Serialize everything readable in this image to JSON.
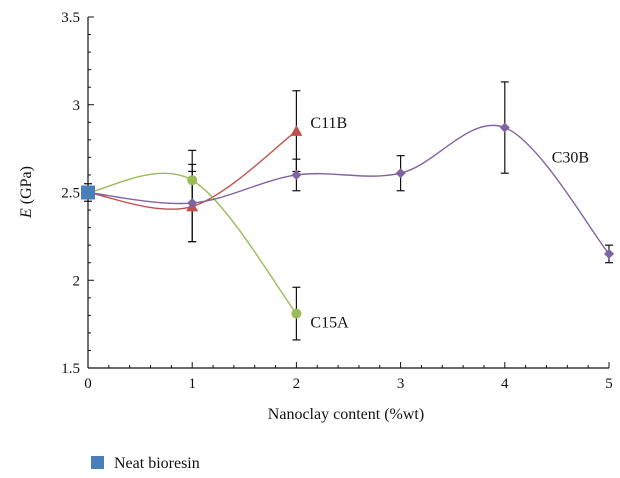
{
  "chart_data": {
    "type": "line",
    "xlabel": "Nanoclay content (%wt)",
    "ylabel": "E (GPa)",
    "ylabel_italic_part": "E",
    "ylabel_rest": " (GPa)",
    "xlim": [
      0,
      5
    ],
    "ylim": [
      1.5,
      3.5
    ],
    "x_ticks": [
      0,
      1,
      2,
      3,
      4,
      5
    ],
    "y_ticks": [
      1.5,
      2,
      2.5,
      3,
      3.5
    ],
    "x_tick_labels": [
      "0",
      "1",
      "2",
      "3",
      "4",
      "5"
    ],
    "y_tick_labels": [
      "1.5",
      "2",
      "2.5",
      "3",
      "3.5"
    ],
    "grid": false,
    "legend": {
      "placement": "bottom-left",
      "entries": [
        {
          "label": "Neat bioresin",
          "color": "#4a7ebb",
          "marker": "square"
        }
      ]
    },
    "neat_bioresin": {
      "x": 0,
      "y": 2.5,
      "err": 0.05,
      "color": "#4a7ebb"
    },
    "series": [
      {
        "name": "C11B",
        "color": "#c0504d",
        "marker": "triangle",
        "x": [
          0,
          1,
          2
        ],
        "y": [
          2.5,
          2.42,
          2.85
        ],
        "err": [
          0.05,
          0.2,
          0.23
        ]
      },
      {
        "name": "C15A",
        "color": "#9bbb59",
        "marker": "circle",
        "x": [
          0,
          1,
          2
        ],
        "y": [
          2.5,
          2.57,
          1.81
        ],
        "err": [
          0.05,
          0.17,
          0.15
        ]
      },
      {
        "name": "C30B",
        "color": "#8064a2",
        "marker": "diamond",
        "x": [
          0,
          1,
          2,
          3,
          4,
          5
        ],
        "y": [
          2.5,
          2.44,
          2.6,
          2.61,
          2.87,
          2.15
        ],
        "err": [
          0.05,
          0.22,
          0.09,
          0.1,
          0.26,
          0.05
        ]
      }
    ]
  }
}
